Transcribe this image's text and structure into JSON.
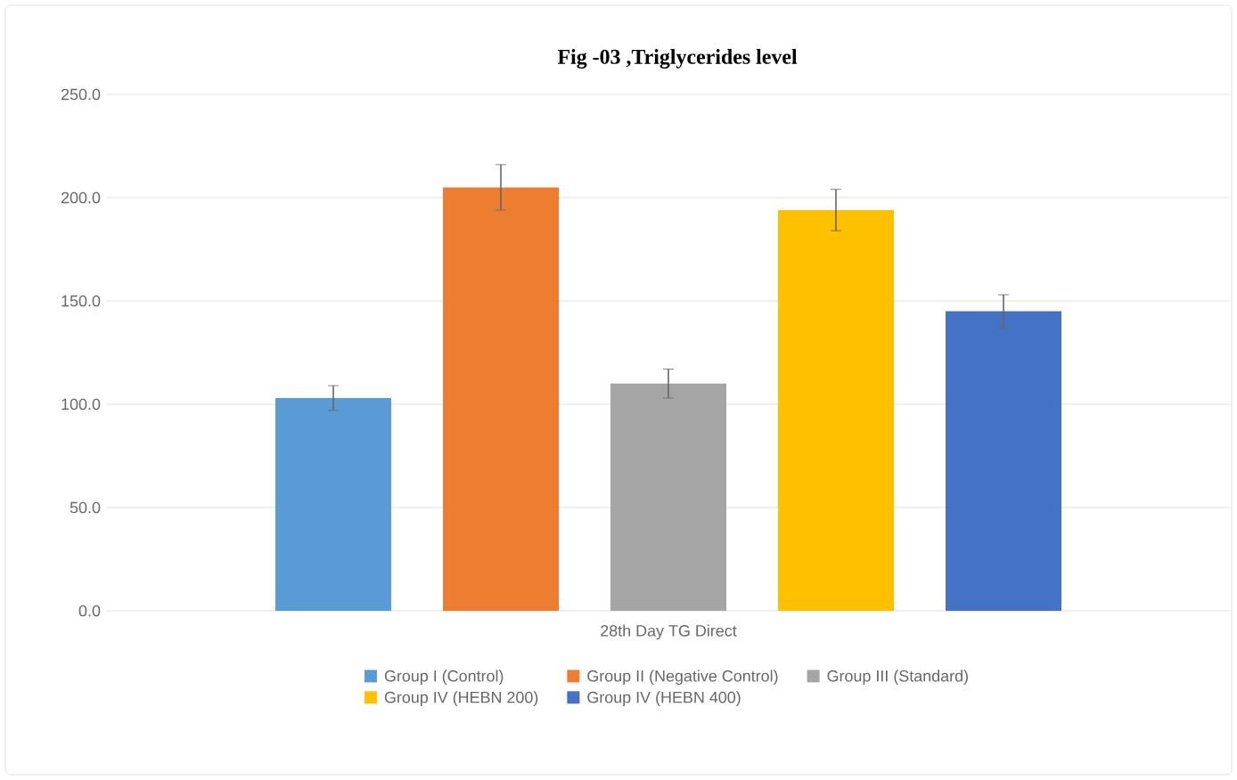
{
  "chart_data": {
    "type": "bar",
    "title": "Fig -03 ,Triglycerides level",
    "categories": [
      "28th Day TG Direct"
    ],
    "series": [
      {
        "name": "Group I (Control)",
        "color": "#5b9bd5",
        "values": [
          103
        ],
        "errors": [
          6
        ]
      },
      {
        "name": "Group II (Negative Control)",
        "color": "#ed7d31",
        "values": [
          205
        ],
        "errors": [
          11
        ]
      },
      {
        "name": "Group III (Standard)",
        "color": "#a5a5a5",
        "values": [
          110
        ],
        "errors": [
          7
        ]
      },
      {
        "name": "Group IV (HEBN 200)",
        "color": "#ffc000",
        "values": [
          194
        ],
        "errors": [
          10
        ]
      },
      {
        "name": "Group IV (HEBN 400)",
        "color": "#4472c4",
        "values": [
          145
        ],
        "errors": [
          8
        ]
      }
    ],
    "ylim": [
      0,
      250
    ],
    "yticks": [
      {
        "value": 0,
        "label": "0.0"
      },
      {
        "value": 50,
        "label": "50.0"
      },
      {
        "value": 100,
        "label": "100.0"
      },
      {
        "value": 150,
        "label": "150.0"
      },
      {
        "value": 200,
        "label": "200.0"
      },
      {
        "value": 250,
        "label": "250.0"
      }
    ],
    "grid": "y",
    "legend": "bottom"
  }
}
